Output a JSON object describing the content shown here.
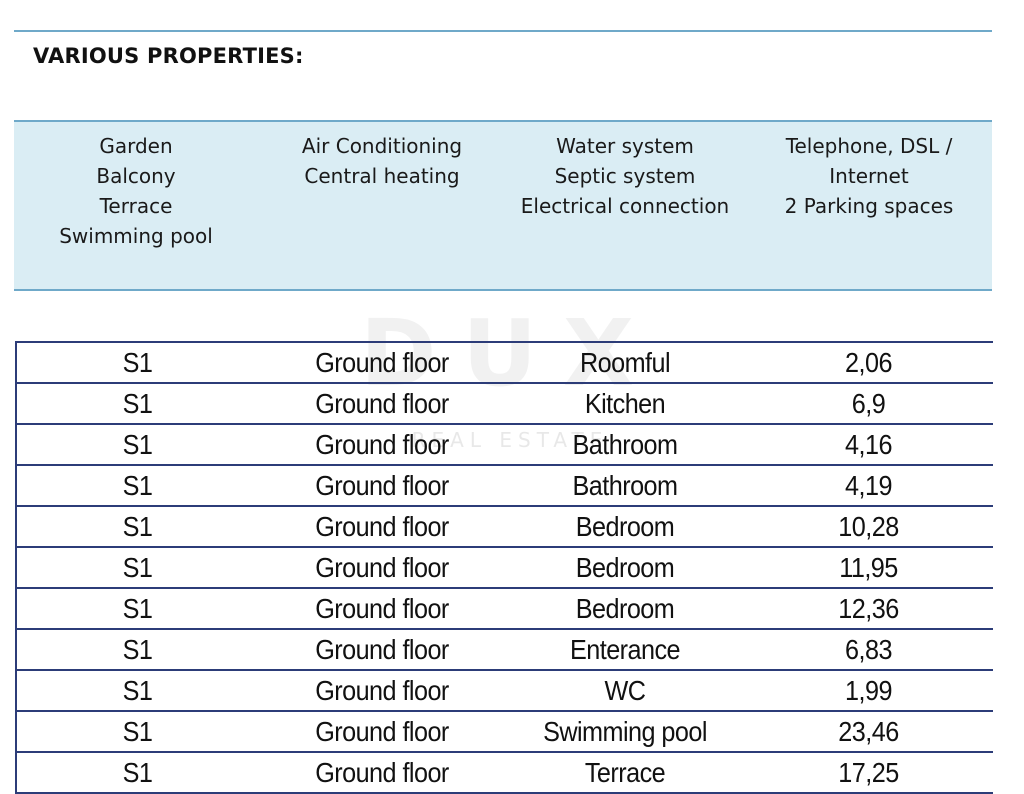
{
  "section": {
    "title": "VARIOUS PROPERTIES:"
  },
  "properties": {
    "columns": [
      [
        "Garden",
        "Balcony",
        "Terrace",
        "Swimming pool"
      ],
      [
        "Air Conditioning",
        "Central heating"
      ],
      [
        "Water system",
        "Septic system",
        "Electrical connection"
      ],
      [
        "Telephone, DSL /",
        "Internet",
        "2 Parking spaces"
      ]
    ]
  },
  "watermark": {
    "logo": "DUX",
    "subtitle": "REAL ESTATE"
  },
  "rooms": {
    "rows": [
      [
        "S1",
        "Ground floor",
        "Roomful",
        "2,06"
      ],
      [
        "S1",
        "Ground floor",
        "Kitchen",
        "6,9"
      ],
      [
        "S1",
        "Ground floor",
        "Bathroom",
        "4,16"
      ],
      [
        "S1",
        "Ground floor",
        "Bathroom",
        "4,19"
      ],
      [
        "S1",
        "Ground floor",
        "Bedroom",
        "10,28"
      ],
      [
        "S1",
        "Ground floor",
        "Bedroom",
        "11,95"
      ],
      [
        "S1",
        "Ground floor",
        "Bedroom",
        "12,36"
      ],
      [
        "S1",
        "Ground floor",
        "Enterance",
        "6,83"
      ],
      [
        "S1",
        "Ground floor",
        "WC",
        "1,99"
      ],
      [
        "S1",
        "Ground floor",
        "Swimming pool",
        "23,46"
      ],
      [
        "S1",
        "Ground floor",
        "Terrace",
        "17,25"
      ]
    ]
  }
}
